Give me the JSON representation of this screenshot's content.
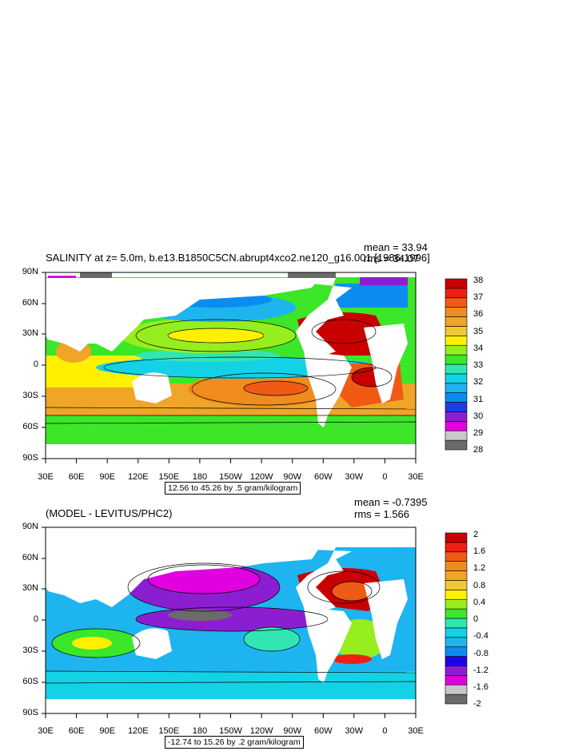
{
  "top": {
    "title": "SALINITY at z=   5.0m, b.e13.B1850C5CN.abrupt4xco2.ne120_g16.001 [1986-1996]",
    "mean_label": "mean = 33.94",
    "rms_label": "rms = 34.07",
    "range_label": "12.56 to 45.26 by .5 gram/kilogram",
    "colorbar_labels": [
      "38",
      "37",
      "36",
      "35",
      "34",
      "33",
      "32",
      "31",
      "30",
      "29",
      "28"
    ],
    "colors": [
      "#6b6b6b",
      "#c8c8c8",
      "#e000e0",
      "#8c1ed2",
      "#1e3ce6",
      "#0a8cf0",
      "#1eb4f0",
      "#14d2e6",
      "#32e6b4",
      "#3ce628",
      "#96ee1e",
      "#fff000",
      "#f0c832",
      "#f0a428",
      "#f08c1e",
      "#f05a14",
      "#f01e14",
      "#c80000"
    ]
  },
  "bottom": {
    "title": "(MODEL - LEVITUS/PHC2)",
    "mean_label": "mean = -0.7395",
    "rms_label": "rms = 1.566",
    "range_label": "-12.74 to 15.26 by .2 gram/kilogram",
    "colorbar_labels": [
      "2",
      "1.6",
      "1.2",
      "0.8",
      "0.4",
      "0",
      "-0.4",
      "-0.8",
      "-1.2",
      "-1.6",
      "-2"
    ],
    "colors": [
      "#6b6b6b",
      "#c8c8c8",
      "#e000e0",
      "#8c1ed2",
      "#1e00f0",
      "#0a8cf0",
      "#1eb4f0",
      "#14d2e6",
      "#32e6b4",
      "#3ce628",
      "#96ee1e",
      "#fff000",
      "#f0c832",
      "#f0a428",
      "#f08c1e",
      "#f05a14",
      "#f01e14",
      "#c80000"
    ]
  },
  "axes": {
    "lat_labels": [
      "90N",
      "60N",
      "30N",
      "0",
      "30S",
      "60S",
      "90S"
    ],
    "lon_labels": [
      "30E",
      "60E",
      "90E",
      "120E",
      "150E",
      "180",
      "150W",
      "120W",
      "90W",
      "60W",
      "30W",
      "0",
      "30E"
    ]
  }
}
